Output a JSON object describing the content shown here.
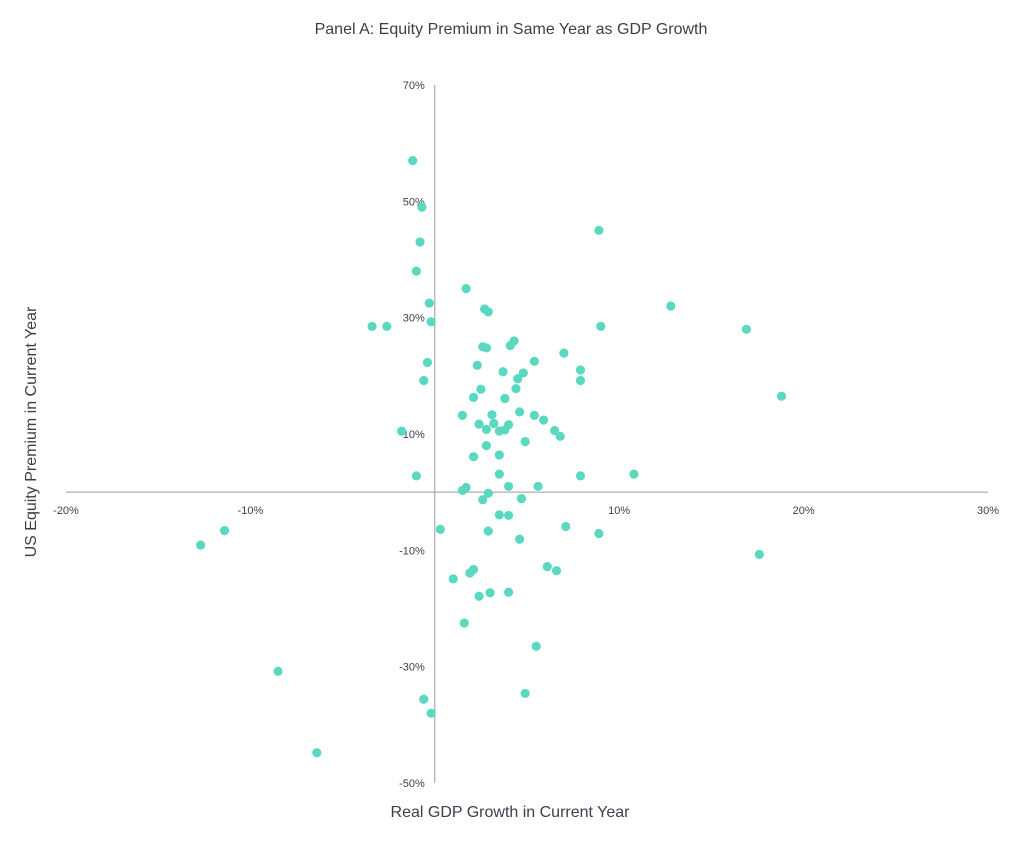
{
  "chart_data": {
    "type": "scatter",
    "title": "Panel A: Equity Premium in Same Year as GDP Growth",
    "xlabel": "Real GDP Growth in Current Year",
    "ylabel": "US Equity Premium in Current Year",
    "xlim": [
      -20,
      30
    ],
    "ylim": [
      -50,
      70
    ],
    "x_ticks": [
      -20,
      -10,
      10,
      20,
      30
    ],
    "x_tick_labels": [
      "-20%",
      "-10%",
      "10%",
      "20%",
      "30%"
    ],
    "y_ticks": [
      70,
      50,
      30,
      10,
      -10,
      -30,
      -50
    ],
    "y_tick_labels": [
      "70%",
      "50%",
      "30%",
      "10%",
      "-10%",
      "-30%",
      "-50%"
    ],
    "grid": false,
    "marker_color": "#5ad9c0",
    "points": [
      [
        -1.2,
        57
      ],
      [
        -0.7,
        49
      ],
      [
        -0.8,
        43
      ],
      [
        -1.0,
        38
      ],
      [
        -0.3,
        32.5
      ],
      [
        -0.2,
        29.3
      ],
      [
        -3.4,
        28.5
      ],
      [
        -2.6,
        28.5
      ],
      [
        -0.4,
        22.3
      ],
      [
        -0.6,
        19.2
      ],
      [
        -1.8,
        10.5
      ],
      [
        -1.0,
        2.8
      ],
      [
        1.7,
        35
      ],
      [
        2.7,
        31.5
      ],
      [
        2.9,
        31
      ],
      [
        2.6,
        25
      ],
      [
        2.8,
        24.8
      ],
      [
        4.3,
        26
      ],
      [
        4.1,
        25.2
      ],
      [
        5.4,
        22.5
      ],
      [
        4.8,
        20.5
      ],
      [
        3.7,
        20.7
      ],
      [
        4.5,
        19.5
      ],
      [
        2.3,
        21.8
      ],
      [
        7.0,
        23.9
      ],
      [
        7.9,
        21
      ],
      [
        7.9,
        19.2
      ],
      [
        9.0,
        28.5
      ],
      [
        8.9,
        45
      ],
      [
        12.8,
        32
      ],
      [
        16.9,
        28
      ],
      [
        18.8,
        16.5
      ],
      [
        2.5,
        17.7
      ],
      [
        4.4,
        17.8
      ],
      [
        2.1,
        16.3
      ],
      [
        3.8,
        16.1
      ],
      [
        1.5,
        13.2
      ],
      [
        3.1,
        13.3
      ],
      [
        4.6,
        13.8
      ],
      [
        5.4,
        13.2
      ],
      [
        5.9,
        12.4
      ],
      [
        2.4,
        11.7
      ],
      [
        2.8,
        10.8
      ],
      [
        3.2,
        11.8
      ],
      [
        3.5,
        10.5
      ],
      [
        3.8,
        10.7
      ],
      [
        4.0,
        11.6
      ],
      [
        6.5,
        10.6
      ],
      [
        6.8,
        9.6
      ],
      [
        2.8,
        8.0
      ],
      [
        4.9,
        8.7
      ],
      [
        3.5,
        6.4
      ],
      [
        2.1,
        6.1
      ],
      [
        3.5,
        3.1
      ],
      [
        7.9,
        2.8
      ],
      [
        10.8,
        3.1
      ],
      [
        1.7,
        0.8
      ],
      [
        1.5,
        0.3
      ],
      [
        4.0,
        1.0
      ],
      [
        5.6,
        1.0
      ],
      [
        2.9,
        -0.2
      ],
      [
        2.6,
        -1.3
      ],
      [
        4.7,
        -1.1
      ],
      [
        3.5,
        -3.9
      ],
      [
        4.0,
        -4.0
      ],
      [
        0.3,
        -6.4
      ],
      [
        2.9,
        -6.7
      ],
      [
        7.1,
        -5.9
      ],
      [
        8.9,
        -7.1
      ],
      [
        4.6,
        -8.1
      ],
      [
        -12.7,
        -9.1
      ],
      [
        -11.4,
        -6.6
      ],
      [
        17.6,
        -10.7
      ],
      [
        1.0,
        -14.9
      ],
      [
        1.9,
        -13.9
      ],
      [
        2.1,
        -13.3
      ],
      [
        6.1,
        -12.8
      ],
      [
        6.6,
        -13.5
      ],
      [
        2.4,
        -17.9
      ],
      [
        3.0,
        -17.3
      ],
      [
        4.0,
        -17.2
      ],
      [
        1.6,
        -22.5
      ],
      [
        5.5,
        -26.5
      ],
      [
        -8.5,
        -30.8
      ],
      [
        -0.6,
        -35.6
      ],
      [
        -0.2,
        -38
      ],
      [
        4.9,
        -34.6
      ],
      [
        -6.4,
        -44.8
      ]
    ]
  }
}
